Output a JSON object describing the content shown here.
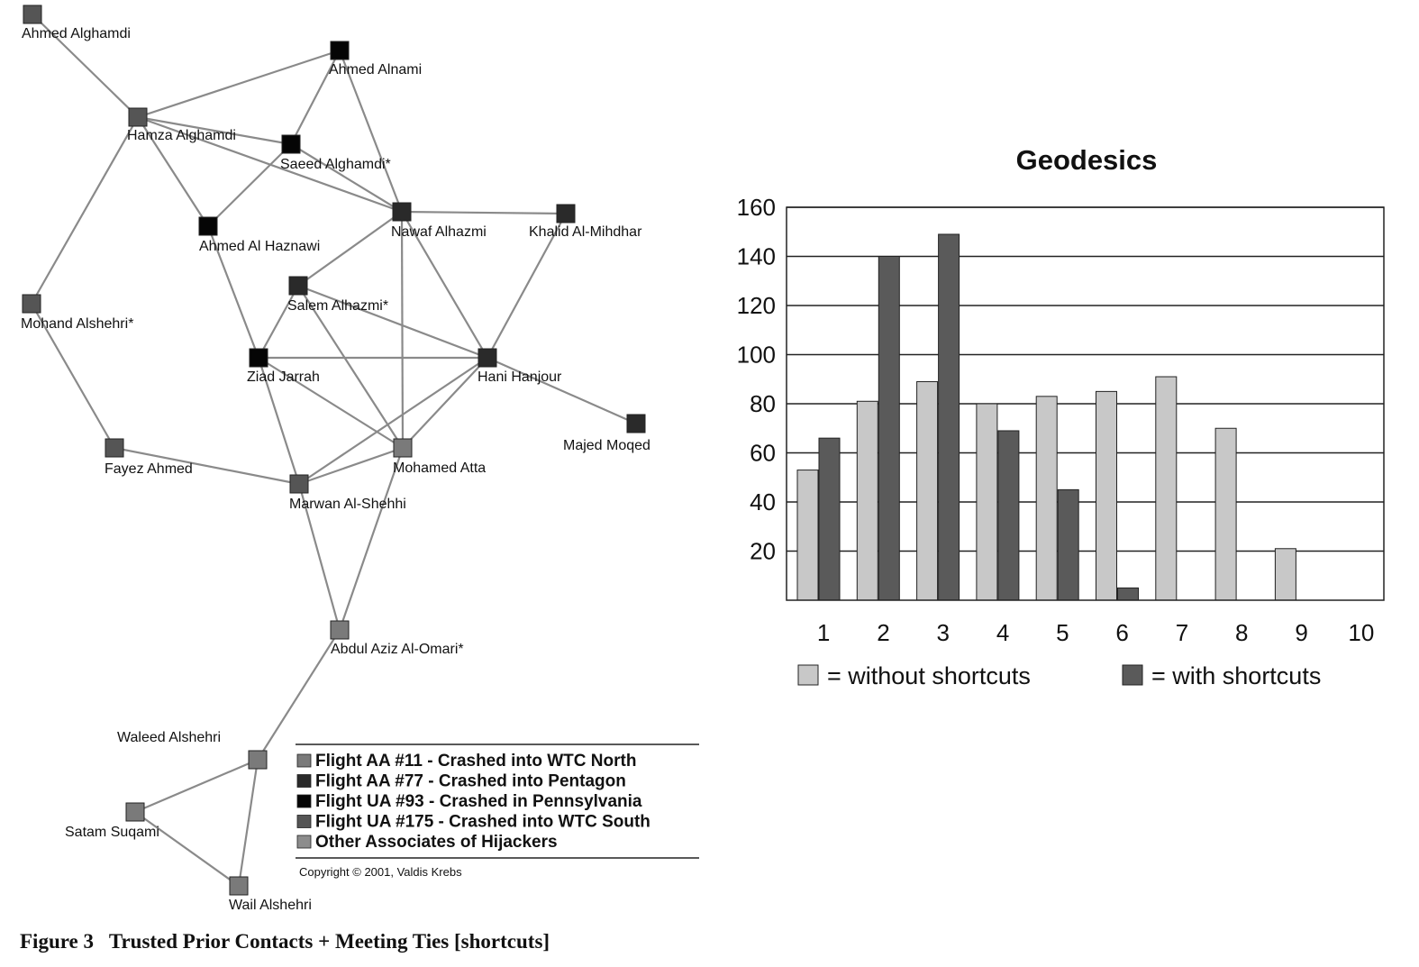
{
  "figure": {
    "caption": "Figure 3   Trusted Prior Contacts + Meeting Ties [shortcuts]",
    "copyright": "Copyright © 2001, Valdis Krebs"
  },
  "network": {
    "colors": {
      "aa11": "#7a7a7a",
      "aa77": "#2a2a2a",
      "ua93": "#050505",
      "ua175": "#555555",
      "other": "#8c8c8c",
      "edge": "#8a8a8a"
    },
    "nodes": [
      {
        "id": "ahmed-alghamdi",
        "label": "Ahmed Alghamdi",
        "group": "ua175"
      },
      {
        "id": "ahmed-alnami",
        "label": "Ahmed Alnami",
        "group": "ua93"
      },
      {
        "id": "hamza-alghamdi",
        "label": "Hamza Alghamdi",
        "group": "ua175"
      },
      {
        "id": "saeed-alghamdi",
        "label": "Saeed Alghamdi*",
        "group": "ua93"
      },
      {
        "id": "ahmed-al-haznawi",
        "label": "Ahmed Al Haznawi",
        "group": "ua93"
      },
      {
        "id": "nawaf-alhazmi",
        "label": "Nawaf Alhazmi",
        "group": "aa77"
      },
      {
        "id": "khalid-al-mihdhar",
        "label": "Khalid Al-Mihdhar",
        "group": "aa77"
      },
      {
        "id": "mohand-alshehri",
        "label": "Mohand Alshehri*",
        "group": "ua175"
      },
      {
        "id": "salem-alhazmi",
        "label": "Salem Alhazmi*",
        "group": "aa77"
      },
      {
        "id": "ziad-jarrah",
        "label": "Ziad Jarrah",
        "group": "ua93"
      },
      {
        "id": "hani-hanjour",
        "label": "Hani Hanjour",
        "group": "aa77"
      },
      {
        "id": "majed-moqed",
        "label": "Majed Moqed",
        "group": "aa77"
      },
      {
        "id": "fayez-ahmed",
        "label": "Fayez Ahmed",
        "group": "ua175"
      },
      {
        "id": "mohamed-atta",
        "label": "Mohamed Atta",
        "group": "aa11"
      },
      {
        "id": "marwan-al-shehhi",
        "label": "Marwan Al-Shehhi",
        "group": "ua175"
      },
      {
        "id": "abdul-aziz-al-omari",
        "label": "Abdul Aziz Al-Omari*",
        "group": "aa11"
      },
      {
        "id": "waleed-alshehri",
        "label": "Waleed Alshehri",
        "group": "aa11"
      },
      {
        "id": "satam-suqami",
        "label": "Satam Suqami",
        "group": "aa11"
      },
      {
        "id": "wail-alshehri",
        "label": "Wail Alshehri",
        "group": "aa11"
      }
    ],
    "edges": [
      [
        "ahmed-alghamdi",
        "hamza-alghamdi"
      ],
      [
        "hamza-alghamdi",
        "ahmed-alnami"
      ],
      [
        "hamza-alghamdi",
        "saeed-alghamdi"
      ],
      [
        "hamza-alghamdi",
        "ahmed-al-haznawi"
      ],
      [
        "hamza-alghamdi",
        "nawaf-alhazmi"
      ],
      [
        "hamza-alghamdi",
        "mohand-alshehri"
      ],
      [
        "ahmed-alnami",
        "saeed-alghamdi"
      ],
      [
        "ahmed-alnami",
        "nawaf-alhazmi"
      ],
      [
        "saeed-alghamdi",
        "nawaf-alhazmi"
      ],
      [
        "saeed-alghamdi",
        "ahmed-al-haznawi"
      ],
      [
        "ahmed-al-haznawi",
        "ziad-jarrah"
      ],
      [
        "nawaf-alhazmi",
        "khalid-al-mihdhar"
      ],
      [
        "nawaf-alhazmi",
        "salem-alhazmi"
      ],
      [
        "nawaf-alhazmi",
        "hani-hanjour"
      ],
      [
        "nawaf-alhazmi",
        "mohamed-atta"
      ],
      [
        "khalid-al-mihdhar",
        "hani-hanjour"
      ],
      [
        "salem-alhazmi",
        "ziad-jarrah"
      ],
      [
        "salem-alhazmi",
        "hani-hanjour"
      ],
      [
        "salem-alhazmi",
        "mohamed-atta"
      ],
      [
        "ziad-jarrah",
        "hani-hanjour"
      ],
      [
        "ziad-jarrah",
        "mohamed-atta"
      ],
      [
        "ziad-jarrah",
        "marwan-al-shehhi"
      ],
      [
        "hani-hanjour",
        "majed-moqed"
      ],
      [
        "hani-hanjour",
        "mohamed-atta"
      ],
      [
        "hani-hanjour",
        "marwan-al-shehhi"
      ],
      [
        "mohand-alshehri",
        "fayez-ahmed"
      ],
      [
        "fayez-ahmed",
        "marwan-al-shehhi"
      ],
      [
        "mohamed-atta",
        "marwan-al-shehhi"
      ],
      [
        "mohamed-atta",
        "abdul-aziz-al-omari"
      ],
      [
        "marwan-al-shehhi",
        "abdul-aziz-al-omari"
      ],
      [
        "abdul-aziz-al-omari",
        "waleed-alshehri"
      ],
      [
        "waleed-alshehri",
        "satam-suqami"
      ],
      [
        "waleed-alshehri",
        "wail-alshehri"
      ],
      [
        "satam-suqami",
        "wail-alshehri"
      ]
    ],
    "legend": [
      {
        "label": "Flight AA #11 - Crashed into WTC North",
        "group": "aa11"
      },
      {
        "label": "Flight AA #77 - Crashed into Pentagon",
        "group": "aa77"
      },
      {
        "label": "Flight UA #93 - Crashed in Pennsylvania",
        "group": "ua93"
      },
      {
        "label": "Flight UA #175 - Crashed into WTC South",
        "group": "ua175"
      },
      {
        "label": "Other Associates of Hijackers",
        "group": "other"
      }
    ]
  },
  "chart_data": {
    "type": "bar",
    "title": "Geodesics",
    "xlabel": "",
    "ylabel": "",
    "ylim": [
      0,
      160
    ],
    "yticks": [
      20,
      40,
      60,
      80,
      100,
      120,
      140,
      160
    ],
    "categories": [
      "1",
      "2",
      "3",
      "4",
      "5",
      "6",
      "7",
      "8",
      "9",
      "10"
    ],
    "grid": "horizontal",
    "legend_position": "bottom",
    "series": [
      {
        "name": "= without shortcuts",
        "color": "#c8c8c8",
        "values": [
          53,
          81,
          89,
          80,
          83,
          85,
          91,
          70,
          21,
          0
        ]
      },
      {
        "name": "= with shortcuts",
        "color": "#5a5a5a",
        "values": [
          66,
          140,
          149,
          69,
          45,
          5,
          0,
          0,
          0,
          0
        ]
      }
    ]
  }
}
